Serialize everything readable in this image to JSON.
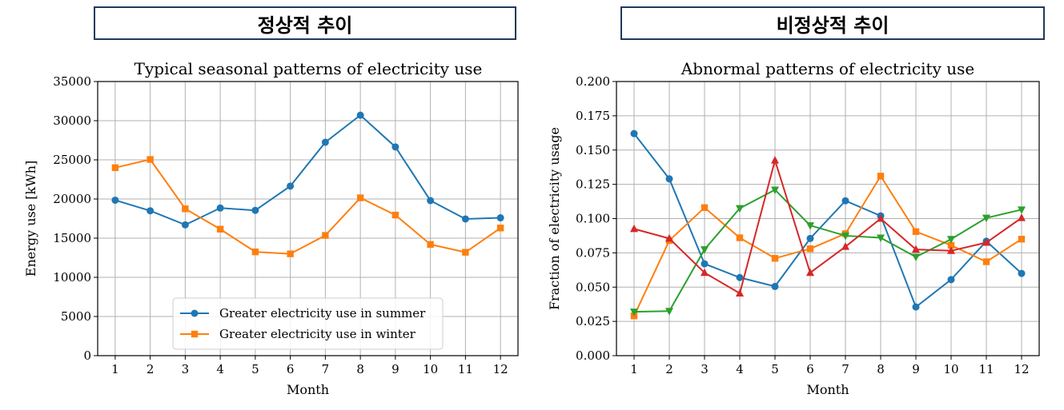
{
  "headers": {
    "left": "정상적 추이",
    "right": "비정상적 추이"
  },
  "colors": {
    "blue": "#1f77b4",
    "orange": "#ff7f0e",
    "green": "#2ca02c",
    "red": "#d62728",
    "grid": "#b0b0b0",
    "header_border": "#1f3a5a"
  },
  "chart_data": [
    {
      "type": "line",
      "title": "Typical seasonal patterns of electricity use",
      "xlabel": "Month",
      "ylabel": "Energy use [kWh]",
      "categories": [
        "1",
        "2",
        "3",
        "4",
        "5",
        "6",
        "7",
        "8",
        "9",
        "10",
        "11",
        "12"
      ],
      "ylim": [
        0,
        35000
      ],
      "yticks": [
        0,
        5000,
        10000,
        15000,
        20000,
        25000,
        30000,
        35000
      ],
      "ytick_labels": [
        "0",
        "5000",
        "10000",
        "15000",
        "20000",
        "25000",
        "30000",
        "35000"
      ],
      "grid": true,
      "legend": "bottom-center",
      "series": [
        {
          "name": "Greater electricity use in summer",
          "color": "#1f77b4",
          "marker": "circle",
          "values": [
            19850,
            18500,
            16700,
            18850,
            18550,
            21650,
            27250,
            30700,
            26650,
            19800,
            17450,
            17600
          ]
        },
        {
          "name": "Greater electricity use in winter",
          "color": "#ff7f0e",
          "marker": "square",
          "values": [
            24000,
            25050,
            18750,
            16150,
            13250,
            13000,
            15350,
            20150,
            17950,
            14200,
            13200,
            16300
          ]
        }
      ]
    },
    {
      "type": "line",
      "title": "Abnormal patterns of electricity use",
      "xlabel": "Month",
      "ylabel": "Fraction of electricity usage",
      "categories": [
        "1",
        "2",
        "3",
        "4",
        "5",
        "6",
        "7",
        "8",
        "9",
        "10",
        "11",
        "12"
      ],
      "ylim": [
        0,
        0.2
      ],
      "yticks": [
        0,
        0.025,
        0.05,
        0.075,
        0.1,
        0.125,
        0.15,
        0.175,
        0.2
      ],
      "ytick_labels": [
        "0.000",
        "0.025",
        "0.050",
        "0.075",
        "0.100",
        "0.125",
        "0.150",
        "0.175",
        "0.200"
      ],
      "grid": true,
      "series": [
        {
          "name": "blue",
          "color": "#1f77b4",
          "marker": "circle",
          "values": [
            0.162,
            0.129,
            0.067,
            0.057,
            0.0505,
            0.0855,
            0.113,
            0.102,
            0.0355,
            0.0555,
            0.0835,
            0.06
          ]
        },
        {
          "name": "orange",
          "color": "#ff7f0e",
          "marker": "square",
          "values": [
            0.029,
            0.084,
            0.108,
            0.086,
            0.071,
            0.078,
            0.089,
            0.131,
            0.0905,
            0.0805,
            0.0685,
            0.085
          ]
        },
        {
          "name": "green",
          "color": "#2ca02c",
          "marker": "triangle-down",
          "values": [
            0.032,
            0.0325,
            0.0775,
            0.1075,
            0.121,
            0.095,
            0.0875,
            0.086,
            0.072,
            0.085,
            0.1005,
            0.1065
          ]
        },
        {
          "name": "red",
          "color": "#d62728",
          "marker": "triangle-up",
          "values": [
            0.0925,
            0.0855,
            0.0605,
            0.0455,
            0.1425,
            0.0605,
            0.0795,
            0.1,
            0.0775,
            0.0765,
            0.0825,
            0.1005
          ]
        }
      ]
    }
  ]
}
